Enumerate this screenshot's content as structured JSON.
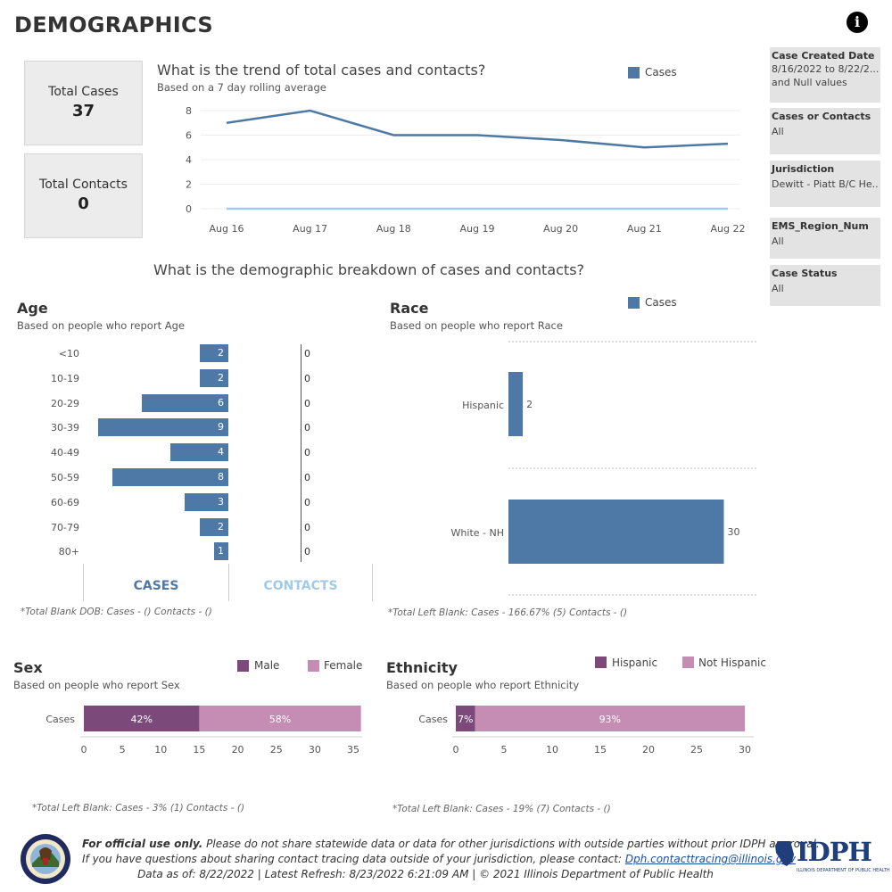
{
  "page_title": "DEMOGRAPHICS",
  "info_icon": "info-icon",
  "kpis": {
    "total_cases_label": "Total Cases",
    "total_cases_value": "37",
    "total_contacts_label": "Total Contacts",
    "total_contacts_value": "0"
  },
  "filters": [
    {
      "label": "Case Created Date",
      "value": "8/16/2022 to 8/22/2...",
      "value2": "and Null values"
    },
    {
      "label": "Cases or Contacts",
      "value": "All"
    },
    {
      "label": "Jurisdiction",
      "value": "Dewitt - Piatt B/C He..."
    },
    {
      "label": "EMS_Region_Num",
      "value": "All"
    },
    {
      "label": "Case Status",
      "value": "All"
    }
  ],
  "trend": {
    "title": "What is the trend of total cases and contacts?",
    "subtitle": "Based on a 7 day rolling average",
    "legend": "Cases"
  },
  "breakdown_title": "What is the demographic breakdown of cases and contacts?",
  "age": {
    "title": "Age",
    "subtitle": "Based on people who report Age",
    "tab_cases": "CASES",
    "tab_contacts": "CONTACTS",
    "note": "*Total Blank DOB: Cases -  () Contacts -  ()"
  },
  "race": {
    "title": "Race",
    "subtitle": "Based on people who report Race",
    "legend": "Cases",
    "note": "*Total Left Blank: Cases - 166.67% (5) Contacts -  ()"
  },
  "sex": {
    "title": "Sex",
    "subtitle": "Based on people who report Sex",
    "legend_male": "Male",
    "legend_female": "Female",
    "note": "*Total Left Blank: Cases - 3% (1) Contacts -  ()"
  },
  "ethnicity": {
    "title": "Ethnicity",
    "subtitle": "Based on people who report Ethnicity",
    "legend_hispanic": "Hispanic",
    "legend_not_hispanic": "Not Hispanic",
    "note": "*Total Left Blank: Cases - 19% (7) Contacts -  ()"
  },
  "footer": {
    "bold": "For official use only.",
    "line1_rest": " Please do not share statewide data or data for other jurisdictions with outside parties without prior IDPH approval.",
    "line2": "If you have questions about sharing contact tracing data outside of your jurisdiction, please contact: ",
    "email": "Dph.contacttracing@illinois.gov",
    "line3": "Data as of: 8/22/2022  |  Latest Refresh: 8/23/2022 6:21:09 AM  |  © 2021 Illinois Department of Public Health",
    "logo_text": "IDPH",
    "logo_sub": "ILLINOIS DEPARTMENT OF PUBLIC HEALTH"
  },
  "colors": {
    "cases": "#4e79a7",
    "contacts": "#a0cbe8",
    "male": "#7b4a7b",
    "female": "#c58cb4",
    "hispanic": "#7b4a7b",
    "not_hispanic": "#c58cb4"
  },
  "chart_data": [
    {
      "type": "line",
      "title": "What is the trend of total cases and contacts?",
      "x": [
        "Aug 16",
        "Aug 17",
        "Aug 18",
        "Aug 19",
        "Aug 20",
        "Aug 21",
        "Aug 22"
      ],
      "series": [
        {
          "name": "Cases",
          "values": [
            7.0,
            8.0,
            6.0,
            6.0,
            5.6,
            5.0,
            5.3
          ]
        },
        {
          "values": [
            0,
            0,
            0,
            0,
            0,
            0,
            0
          ]
        }
      ],
      "ylim": [
        0,
        8
      ],
      "yticks": [
        0,
        2,
        4,
        6,
        8
      ],
      "legend": "top-right"
    },
    {
      "type": "bar",
      "title": "Age",
      "categories": [
        "<10",
        "10-19",
        "20-29",
        "30-39",
        "40-49",
        "50-59",
        "60-69",
        "70-79",
        "80+"
      ],
      "series": [
        {
          "name": "CASES",
          "values": [
            2,
            2,
            6,
            9,
            4,
            8,
            3,
            2,
            1
          ]
        },
        {
          "name": "CONTACTS",
          "values": [
            0,
            0,
            0,
            0,
            0,
            0,
            0,
            0,
            0
          ]
        }
      ]
    },
    {
      "type": "bar",
      "title": "Race",
      "categories": [
        "Hispanic",
        "White - NH"
      ],
      "series": [
        {
          "name": "Cases",
          "values": [
            2,
            30
          ]
        }
      ]
    },
    {
      "type": "bar",
      "title": "Sex",
      "categories": [
        "Cases"
      ],
      "series": [
        {
          "name": "Male",
          "values": [
            15
          ],
          "label": "42%"
        },
        {
          "name": "Female",
          "values": [
            21
          ],
          "label": "58%"
        }
      ],
      "xticks": [
        0,
        5,
        10,
        15,
        20,
        25,
        30,
        35
      ]
    },
    {
      "type": "bar",
      "title": "Ethnicity",
      "categories": [
        "Cases"
      ],
      "series": [
        {
          "name": "Hispanic",
          "values": [
            2
          ],
          "label": "7%"
        },
        {
          "name": "Not Hispanic",
          "values": [
            28
          ],
          "label": "93%"
        }
      ],
      "xticks": [
        0,
        5,
        10,
        15,
        20,
        25,
        30
      ]
    }
  ]
}
